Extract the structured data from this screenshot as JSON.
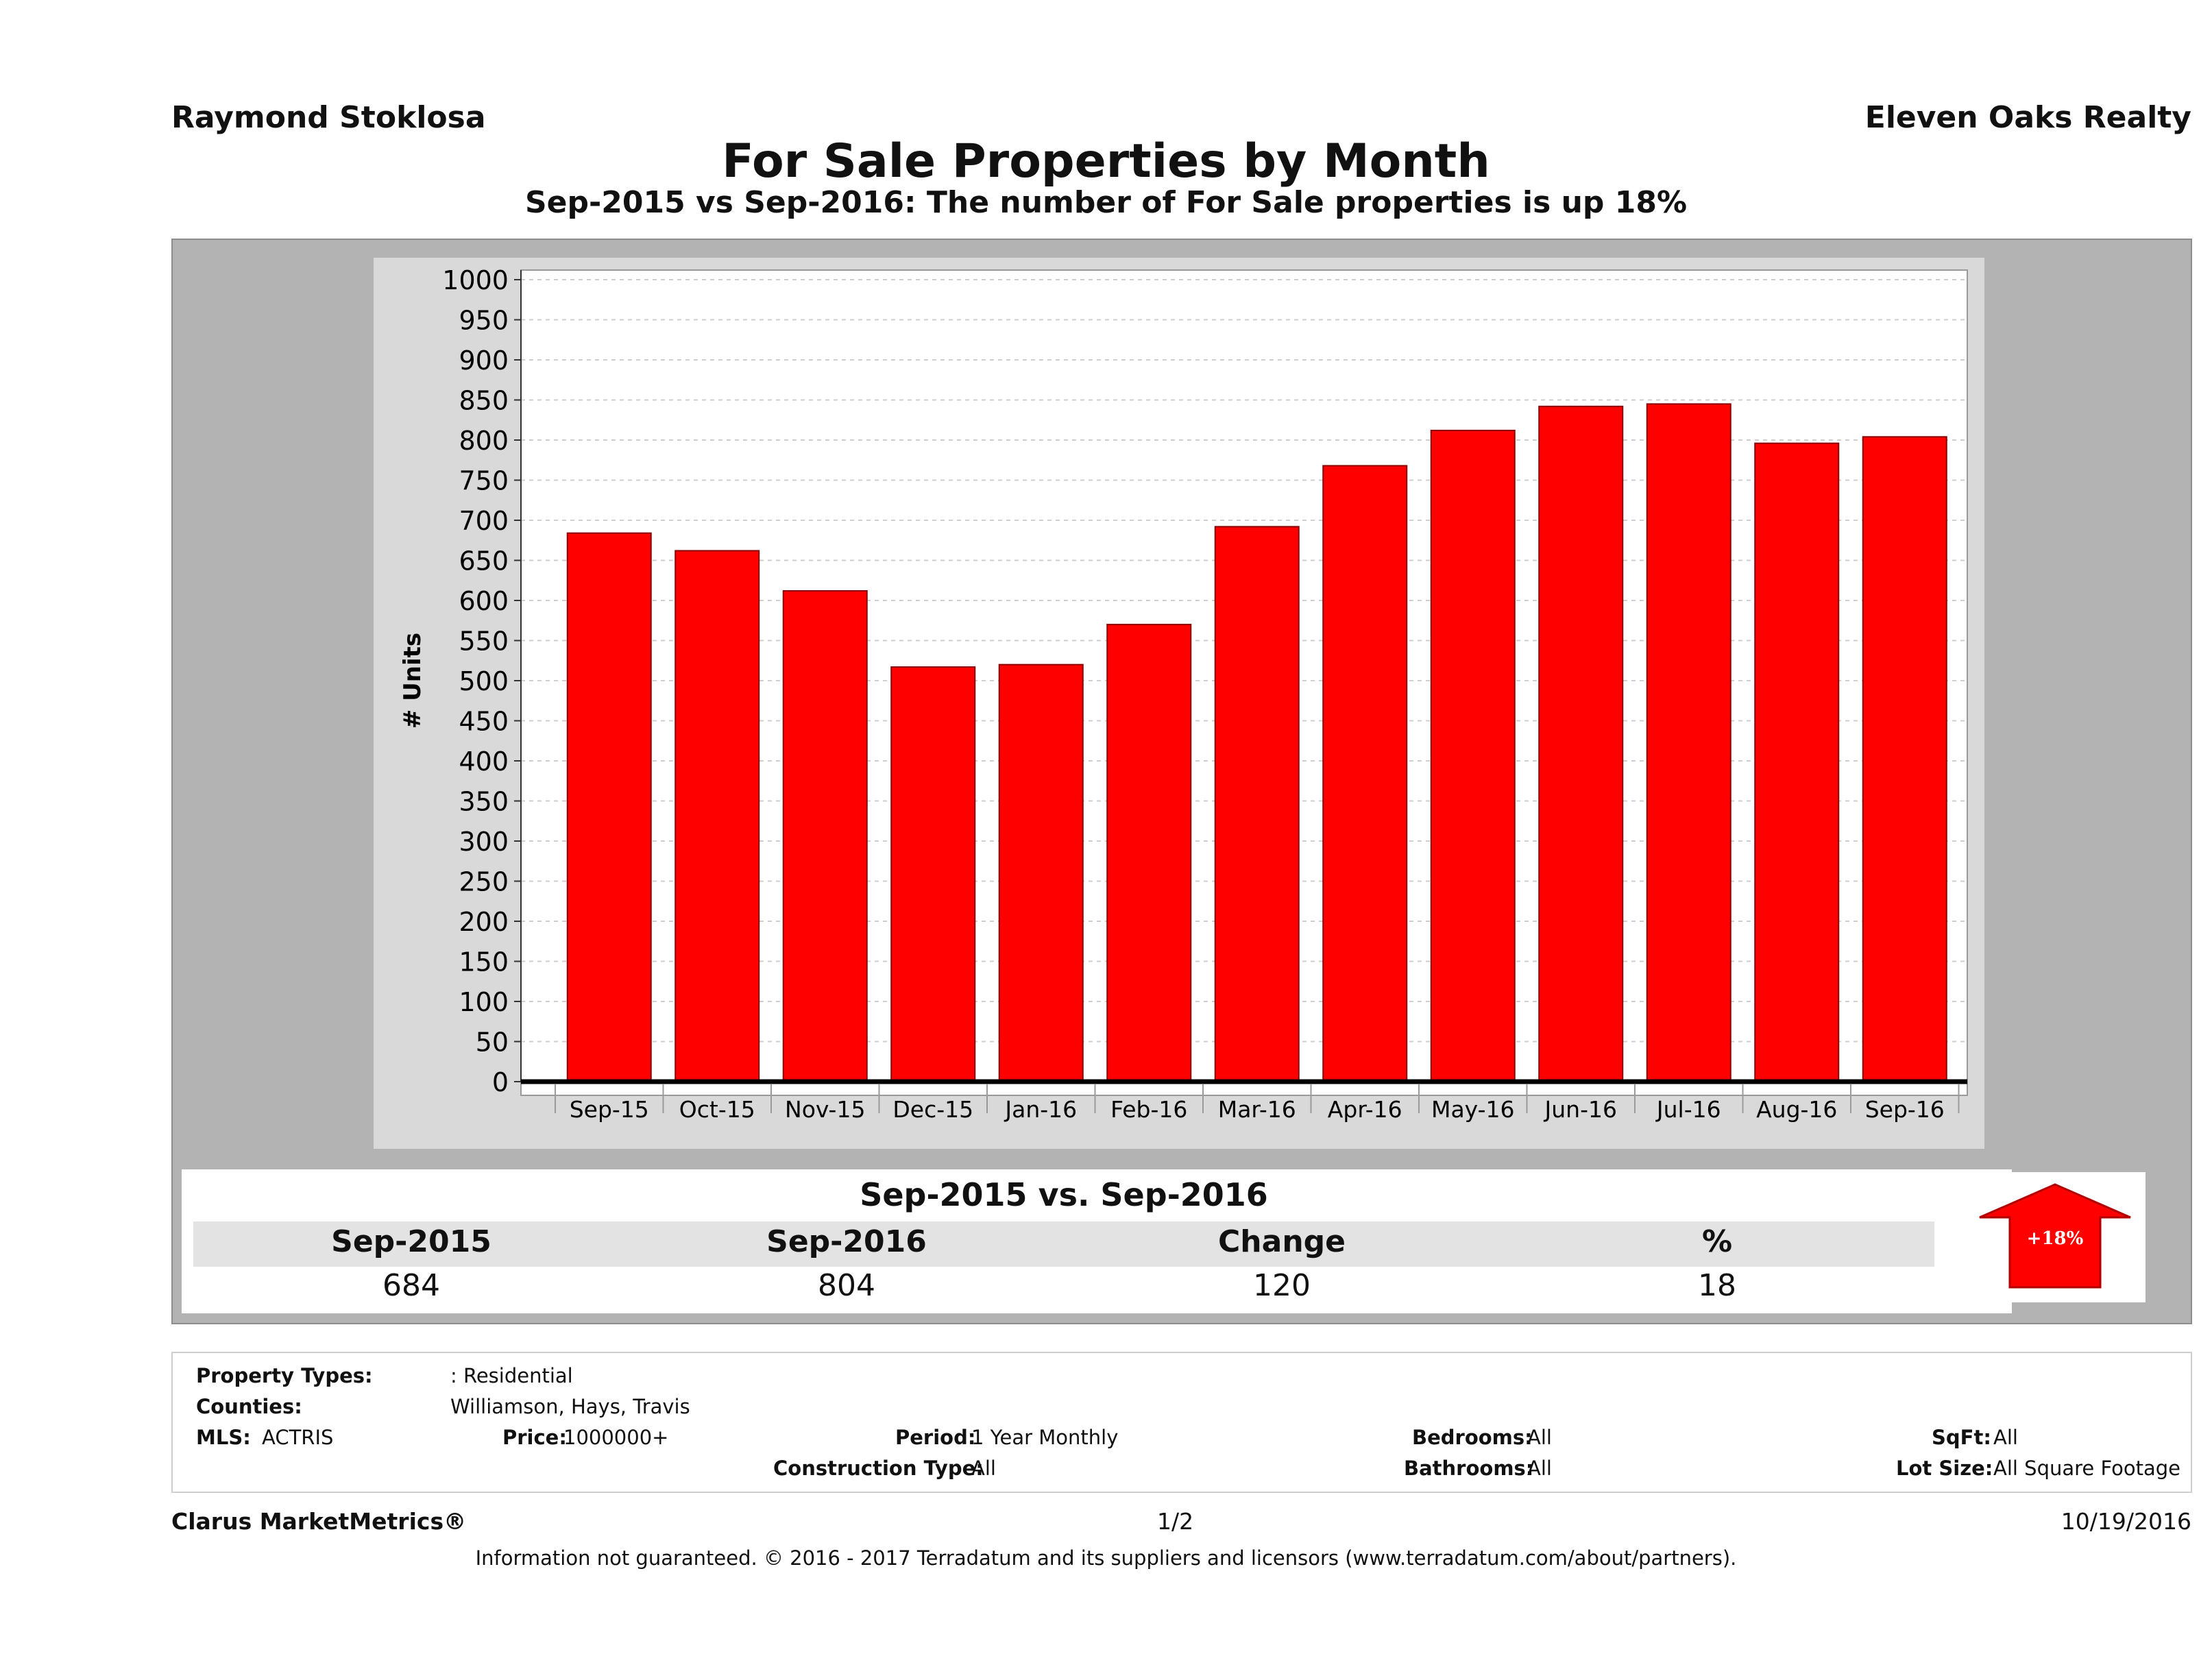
{
  "header": {
    "agent": "Raymond Stoklosa",
    "company": "Eleven Oaks Realty",
    "title": "For Sale Properties by Month",
    "subtitle": "Sep-2015 vs Sep-2016: The number of For Sale   properties is up 18%"
  },
  "chart_data": {
    "type": "bar",
    "categories": [
      "Sep-15",
      "Oct-15",
      "Nov-15",
      "Dec-15",
      "Jan-16",
      "Feb-16",
      "Mar-16",
      "Apr-16",
      "May-16",
      "Jun-16",
      "Jul-16",
      "Aug-16",
      "Sep-16"
    ],
    "values": [
      684,
      662,
      612,
      517,
      520,
      570,
      692,
      768,
      812,
      842,
      845,
      796,
      804
    ],
    "ylabel": "# Units",
    "ylim": [
      0,
      1000
    ],
    "yticks": [
      0,
      50,
      100,
      150,
      200,
      250,
      300,
      350,
      400,
      450,
      500,
      550,
      600,
      650,
      700,
      750,
      800,
      850,
      900,
      950,
      1000
    ],
    "bar_color": "#ff0000",
    "grid": true
  },
  "summary": {
    "title": "Sep-2015 vs. Sep-2016",
    "headers": [
      "Sep-2015",
      "Sep-2016",
      "Change",
      "%"
    ],
    "values": [
      "684",
      "804",
      "120",
      "18"
    ],
    "badge": "+18%",
    "badge_color": "#ff0000"
  },
  "info": {
    "property_types_label": "Property Types:",
    "property_types_value": ": Residential",
    "counties_label": "Counties:",
    "counties_value": "Williamson, Hays, Travis",
    "mls_label": "MLS:",
    "mls_value": "ACTRIS",
    "price_label": "Price:",
    "price_value": "1000000+",
    "period_label": "Period:",
    "period_value": "1 Year Monthly",
    "construction_label": "Construction Type:",
    "construction_value": "All",
    "bedrooms_label": "Bedrooms:",
    "bedrooms_value": "All",
    "bathrooms_label": "Bathrooms:",
    "bathrooms_value": "All",
    "sqft_label": "SqFt:",
    "sqft_value": "All",
    "lotsize_label": "Lot Size:",
    "lotsize_value": "All Square Footage"
  },
  "footer": {
    "brand": "Clarus MarketMetrics®",
    "page": "1/2",
    "date": "10/19/2016",
    "disclaimer": "Information not guaranteed. © 2016 - 2017 Terradatum and its suppliers and licensors (www.terradatum.com/about/partners)."
  }
}
